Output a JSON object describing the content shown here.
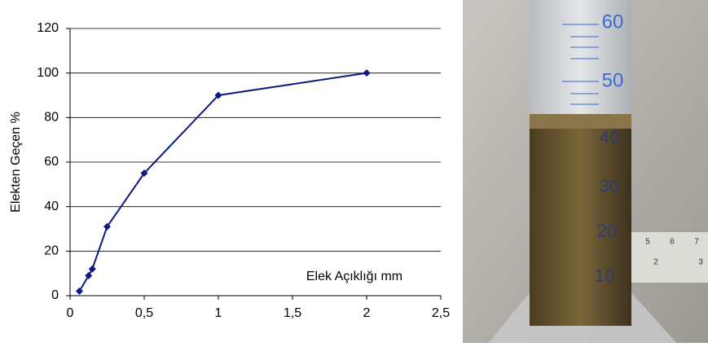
{
  "chart_data": {
    "type": "line",
    "x": [
      0.063,
      0.125,
      0.15,
      0.25,
      0.5,
      1,
      2
    ],
    "values": [
      2,
      9,
      12,
      31,
      55,
      90,
      100
    ],
    "color": "#0a1a80",
    "xlabel": "Elek Açıklığı mm",
    "ylabel": "Elekten Geçen %",
    "xlim": [
      0,
      2.5
    ],
    "xticks": [
      0,
      {
        "value": 0.5,
        "label": "0,5"
      },
      1,
      {
        "value": 1.5,
        "label": "1,5"
      },
      2,
      {
        "value": 2.5,
        "label": "2,5"
      }
    ],
    "ylim": [
      0,
      120
    ],
    "yticks": [
      0,
      20,
      40,
      60,
      80,
      100,
      120
    ],
    "grid": true
  },
  "photo": {
    "scale_labels": [
      "60",
      "50",
      "40",
      "30",
      "20",
      "10"
    ],
    "ruler_labels": [
      "5",
      "6",
      "7",
      "2",
      "3"
    ]
  }
}
